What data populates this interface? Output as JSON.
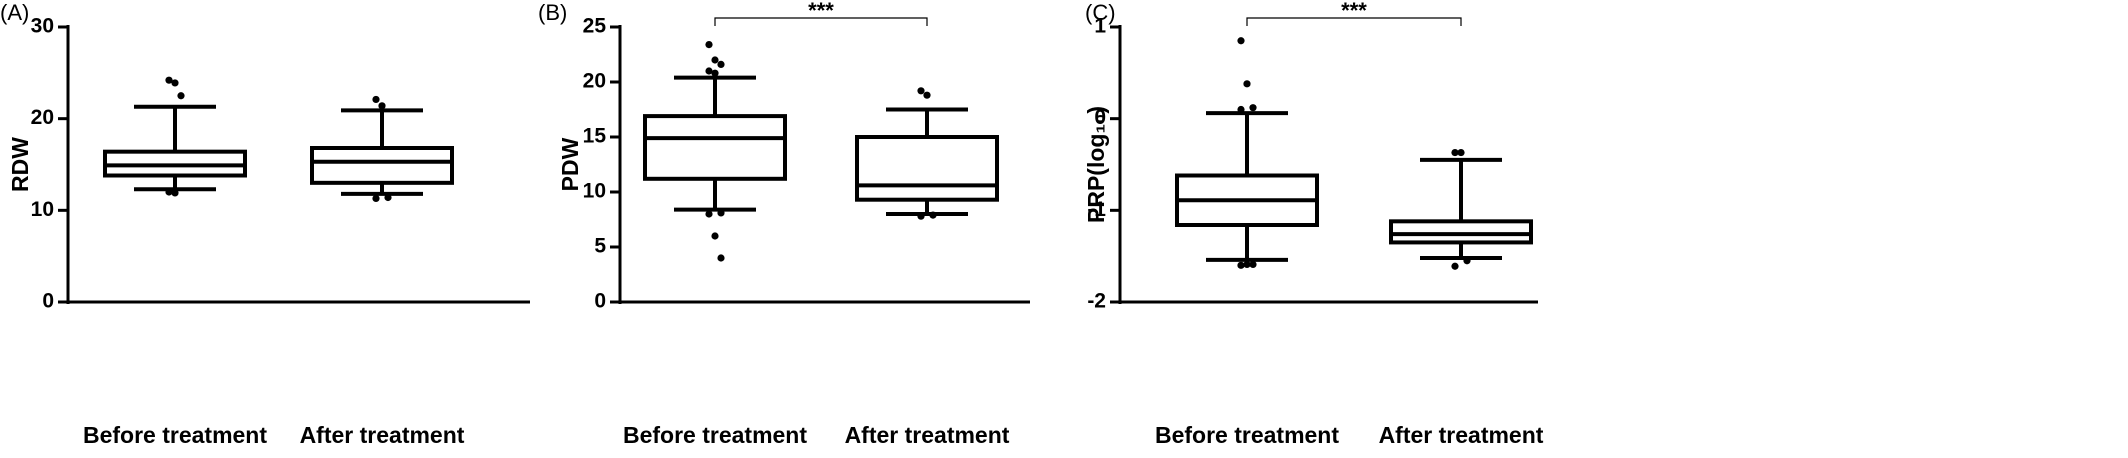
{
  "chart_data": [
    {
      "type": "box",
      "panel_label": "(A)",
      "y_label": "RDW",
      "categories": [
        "Before treatment",
        "After treatment"
      ],
      "ylim": [
        0,
        30
      ],
      "yticks": [
        0,
        10,
        20,
        30
      ],
      "boxes": [
        {
          "whisker_low": 12.3,
          "q1": 13.8,
          "median": 14.9,
          "q3": 16.4,
          "whisker_high": 21.3,
          "outliers": [
            24.2,
            23.9,
            22.5,
            12.0,
            11.9
          ]
        },
        {
          "whisker_low": 11.8,
          "q1": 13.0,
          "median": 15.3,
          "q3": 16.8,
          "whisker_high": 20.9,
          "outliers": [
            22.1,
            21.4,
            11.4,
            11.3
          ]
        }
      ]
    },
    {
      "type": "box",
      "panel_label": "(B)",
      "y_label": "PDW",
      "categories": [
        "Before treatment",
        "After treatment"
      ],
      "ylim": [
        0,
        25
      ],
      "yticks": [
        0,
        5,
        10,
        15,
        20,
        25
      ],
      "significance": "***",
      "boxes": [
        {
          "whisker_low": 8.4,
          "q1": 11.2,
          "median": 14.9,
          "q3": 16.9,
          "whisker_high": 20.4,
          "outliers": [
            23.4,
            22.0,
            21.6,
            21.0,
            20.8,
            8.1,
            8.0,
            6.0,
            4.0
          ]
        },
        {
          "whisker_low": 8.0,
          "q1": 9.3,
          "median": 10.6,
          "q3": 15.0,
          "whisker_high": 17.5,
          "outliers": [
            19.2,
            18.8,
            7.9,
            7.8
          ]
        }
      ]
    },
    {
      "type": "box",
      "panel_label": "(C)",
      "y_label": "PRP(log₁₀)",
      "categories": [
        "Before treatment",
        "After treatment"
      ],
      "ylim": [
        -2,
        1
      ],
      "yticks": [
        -2,
        -1,
        0,
        1
      ],
      "significance": "***",
      "boxes": [
        {
          "whisker_low": -1.54,
          "q1": -1.16,
          "median": -0.89,
          "q3": -0.62,
          "whisker_high": 0.06,
          "outliers": [
            0.85,
            0.38,
            0.12,
            0.1,
            -1.59,
            -1.59,
            -1.6
          ]
        },
        {
          "whisker_low": -1.52,
          "q1": -1.35,
          "median": -1.26,
          "q3": -1.12,
          "whisker_high": -0.45,
          "outliers": [
            -0.37,
            -0.37,
            -1.55,
            -1.61
          ]
        }
      ]
    }
  ]
}
